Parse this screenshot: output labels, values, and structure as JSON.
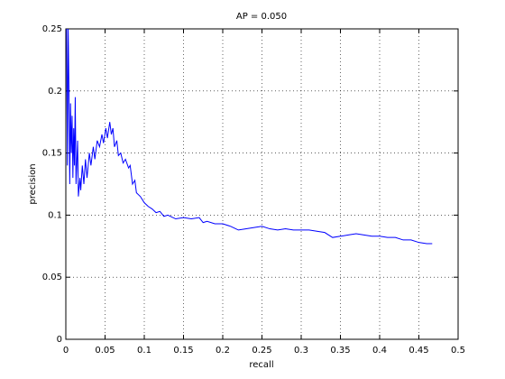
{
  "chart_data": {
    "type": "line",
    "title": "AP = 0.050",
    "x_label": "recall",
    "y_label": "precision",
    "x": [
      0.001,
      0.002,
      0.003,
      0.004,
      0.005,
      0.006,
      0.007,
      0.008,
      0.009,
      0.01,
      0.011,
      0.012,
      0.013,
      0.015,
      0.016,
      0.018,
      0.019,
      0.021,
      0.023,
      0.025,
      0.027,
      0.03,
      0.032,
      0.035,
      0.037,
      0.04,
      0.043,
      0.046,
      0.048,
      0.051,
      0.053,
      0.056,
      0.058,
      0.06,
      0.062,
      0.065,
      0.067,
      0.07,
      0.073,
      0.076,
      0.08,
      0.082,
      0.085,
      0.088,
      0.09,
      0.095,
      0.1,
      0.105,
      0.11,
      0.115,
      0.12,
      0.125,
      0.13,
      0.14,
      0.15,
      0.16,
      0.17,
      0.175,
      0.18,
      0.19,
      0.2,
      0.21,
      0.22,
      0.23,
      0.24,
      0.25,
      0.26,
      0.27,
      0.28,
      0.29,
      0.3,
      0.31,
      0.32,
      0.33,
      0.34,
      0.35,
      0.36,
      0.37,
      0.38,
      0.39,
      0.4,
      0.41,
      0.42,
      0.43,
      0.44,
      0.45,
      0.46,
      0.467
    ],
    "values": [
      0.25,
      0.14,
      0.25,
      0.2,
      0.125,
      0.19,
      0.15,
      0.18,
      0.13,
      0.17,
      0.14,
      0.195,
      0.125,
      0.16,
      0.115,
      0.13,
      0.12,
      0.14,
      0.125,
      0.145,
      0.13,
      0.15,
      0.14,
      0.155,
      0.145,
      0.16,
      0.155,
      0.165,
      0.158,
      0.17,
      0.162,
      0.175,
      0.165,
      0.17,
      0.155,
      0.16,
      0.148,
      0.15,
      0.142,
      0.145,
      0.138,
      0.14,
      0.125,
      0.128,
      0.118,
      0.115,
      0.11,
      0.107,
      0.105,
      0.102,
      0.103,
      0.099,
      0.1,
      0.097,
      0.098,
      0.097,
      0.098,
      0.094,
      0.095,
      0.093,
      0.093,
      0.091,
      0.088,
      0.089,
      0.09,
      0.091,
      0.089,
      0.088,
      0.089,
      0.088,
      0.088,
      0.088,
      0.087,
      0.086,
      0.082,
      0.083,
      0.084,
      0.085,
      0.084,
      0.083,
      0.083,
      0.082,
      0.082,
      0.08,
      0.08,
      0.078,
      0.077,
      0.077
    ],
    "color": "#0000ff",
    "xlim": [
      0,
      0.5
    ],
    "xticks": [
      0,
      0.05,
      0.1,
      0.15,
      0.2,
      0.25,
      0.3,
      0.35,
      0.4,
      0.45,
      0.5
    ],
    "ylim": [
      0,
      0.25
    ],
    "yticks": [
      0,
      0.05,
      0.1,
      0.15,
      0.2,
      0.25
    ],
    "grid": true
  }
}
